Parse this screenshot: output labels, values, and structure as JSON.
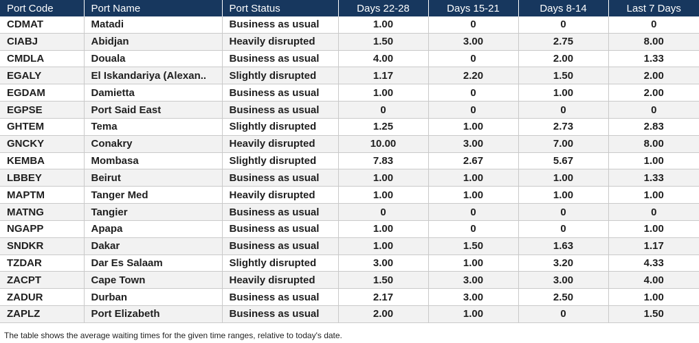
{
  "table": {
    "columns": [
      "Port Code",
      "Port Name",
      "Port Status",
      "Days 22-28",
      "Days 15-21",
      "Days 8-14",
      "Last 7 Days"
    ],
    "rows": [
      [
        "CDMAT",
        "Matadi",
        "Business as usual",
        "1.00",
        "0",
        "0",
        "0"
      ],
      [
        "CIABJ",
        "Abidjan",
        "Heavily disrupted",
        "1.50",
        "3.00",
        "2.75",
        "8.00"
      ],
      [
        "CMDLA",
        "Douala",
        "Business as usual",
        "4.00",
        "0",
        "2.00",
        "1.33"
      ],
      [
        "EGALY",
        "El Iskandariya (Alexan..",
        "Slightly disrupted",
        "1.17",
        "2.20",
        "1.50",
        "2.00"
      ],
      [
        "EGDAM",
        "Damietta",
        "Business as usual",
        "1.00",
        "0",
        "1.00",
        "2.00"
      ],
      [
        "EGPSE",
        "Port Said East",
        "Business as usual",
        "0",
        "0",
        "0",
        "0"
      ],
      [
        "GHTEM",
        "Tema",
        "Slightly disrupted",
        "1.25",
        "1.00",
        "2.73",
        "2.83"
      ],
      [
        "GNCKY",
        "Conakry",
        "Heavily disrupted",
        "10.00",
        "3.00",
        "7.00",
        "8.00"
      ],
      [
        "KEMBA",
        "Mombasa",
        "Slightly disrupted",
        "7.83",
        "2.67",
        "5.67",
        "1.00"
      ],
      [
        "LBBEY",
        "Beirut",
        "Business as usual",
        "1.00",
        "1.00",
        "1.00",
        "1.33"
      ],
      [
        "MAPTM",
        "Tanger Med",
        "Heavily disrupted",
        "1.00",
        "1.00",
        "1.00",
        "1.00"
      ],
      [
        "MATNG",
        "Tangier",
        "Business as usual",
        "0",
        "0",
        "0",
        "0"
      ],
      [
        "NGAPP",
        "Apapa",
        "Business as usual",
        "1.00",
        "0",
        "0",
        "1.00"
      ],
      [
        "SNDKR",
        "Dakar",
        "Business as usual",
        "1.00",
        "1.50",
        "1.63",
        "1.17"
      ],
      [
        "TZDAR",
        "Dar Es Salaam",
        "Slightly disrupted",
        "3.00",
        "1.00",
        "3.20",
        "4.33"
      ],
      [
        "ZACPT",
        "Cape Town",
        "Heavily disrupted",
        "1.50",
        "3.00",
        "3.00",
        "4.00"
      ],
      [
        "ZADUR",
        "Durban",
        "Business as usual",
        "2.17",
        "3.00",
        "2.50",
        "1.00"
      ],
      [
        "ZAPLZ",
        "Port Elizabeth",
        "Business as usual",
        "2.00",
        "1.00",
        "0",
        "1.50"
      ]
    ]
  },
  "footnote": "The table shows the average waiting times for the given time ranges, relative to today's date.",
  "colors": {
    "header_bg": "#17375e",
    "header_text": "#ffffff",
    "row_alt_bg": "#f2f2f2"
  }
}
